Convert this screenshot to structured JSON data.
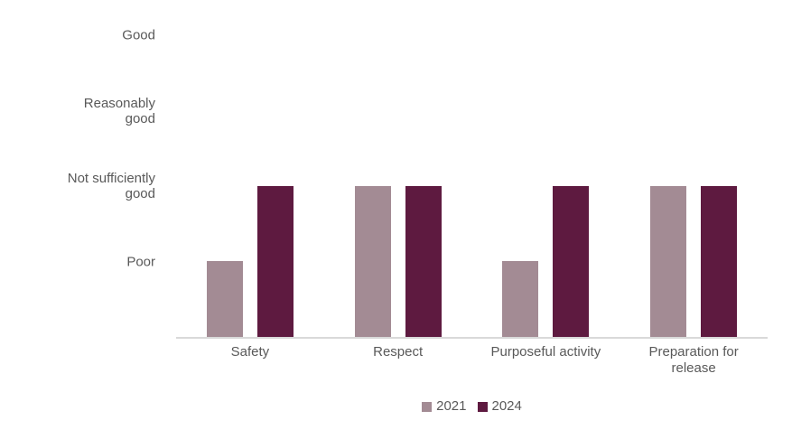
{
  "chart_data": {
    "type": "bar",
    "title": "",
    "xlabel": "",
    "ylabel": "",
    "categories": [
      "Safety",
      "Respect",
      "Purposeful activity",
      "Preparation for release"
    ],
    "series": [
      {
        "name": "2021",
        "color": "#a38b94",
        "values": [
          1,
          2,
          1,
          2
        ]
      },
      {
        "name": "2024",
        "color": "#5e1a40",
        "values": [
          2,
          2,
          2,
          2
        ]
      }
    ],
    "y_ticks": [
      {
        "value": 4,
        "label": "Good"
      },
      {
        "value": 3,
        "label": "Reasonably good"
      },
      {
        "value": 2,
        "label": "Not sufficiently good"
      },
      {
        "value": 1,
        "label": "Poor"
      }
    ],
    "value_scale": {
      "1": "Poor",
      "2": "Not sufficiently good",
      "3": "Reasonably good",
      "4": "Good"
    },
    "ylim": [
      0,
      4
    ],
    "grid": false,
    "legend_position": "bottom",
    "axis_line_color": "#d9d9d9",
    "text_color": "#595959"
  }
}
